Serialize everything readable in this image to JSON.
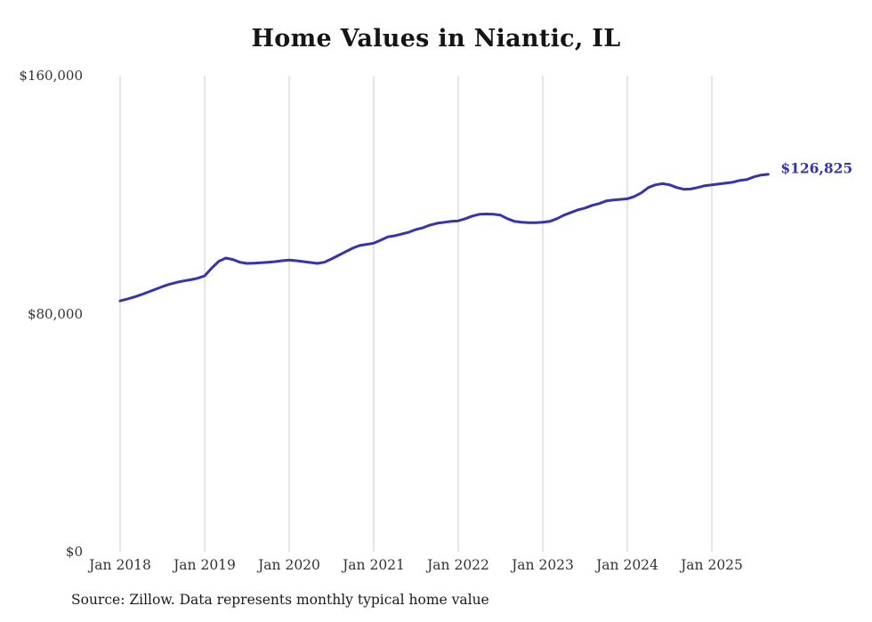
{
  "chart_data": {
    "type": "line",
    "title": "Home Values in Niantic, IL",
    "source": "Source: Zillow. Data represents monthly typical home value",
    "series_name": "Monthly typical home value",
    "end_label": "$126,825",
    "latest_value": 126825,
    "line_color": "#3533b2",
    "grid_color": "#cccccc",
    "ylim": [
      0,
      160000
    ],
    "y_ticks": [
      {
        "label": "$0",
        "value": 0
      },
      {
        "label": "$80,000",
        "value": 80000
      },
      {
        "label": "$160,000",
        "value": 160000
      }
    ],
    "x_ticks": [
      "Jan 2018",
      "Jan 2019",
      "Jan 2020",
      "Jan 2021",
      "Jan 2022",
      "Jan 2023",
      "Jan 2024",
      "Jan 2025"
    ],
    "start_month": "2018-01",
    "end_month": "2025-09",
    "values": [
      84300,
      84900,
      85600,
      86400,
      87300,
      88200,
      89100,
      89900,
      90500,
      91000,
      91400,
      91900,
      92700,
      95300,
      97600,
      98700,
      98200,
      97300,
      96900,
      97000,
      97100,
      97300,
      97500,
      97800,
      98000,
      97800,
      97500,
      97200,
      96900,
      97300,
      98400,
      99600,
      100800,
      102000,
      102900,
      103300,
      103700,
      104700,
      105800,
      106200,
      106800,
      107400,
      108300,
      108900,
      109800,
      110400,
      110700,
      111000,
      111200,
      111900,
      112800,
      113400,
      113500,
      113400,
      113100,
      111900,
      111000,
      110700,
      110600,
      110600,
      110700,
      111000,
      111900,
      113100,
      114000,
      114900,
      115500,
      116400,
      117000,
      117900,
      118200,
      118400,
      118600,
      119400,
      120600,
      122400,
      123300,
      123700,
      123300,
      122400,
      121800,
      121900,
      122400,
      123000,
      123300,
      123600,
      123900,
      124200,
      124800,
      125100,
      126000,
      126600,
      126825
    ]
  }
}
